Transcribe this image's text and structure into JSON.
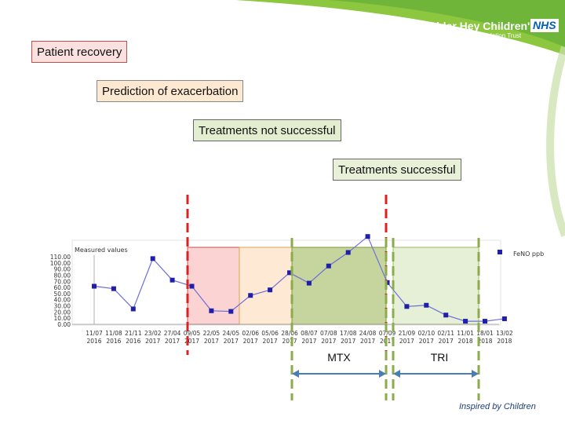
{
  "header": {
    "logo_text": "Alder Hey Children's",
    "logo_nhs": "NHS",
    "logo_sub": "NHS Foundation Trust"
  },
  "boxes": [
    {
      "label": "Patient recovery",
      "fill": "#fbe0e0",
      "border": "#c0504d"
    },
    {
      "label": "Prediction of exacerbation",
      "fill": "#fde9d2",
      "border": "#888888"
    },
    {
      "label": "Treatments not successful",
      "fill": "#e3edcf",
      "border": "#666666"
    },
    {
      "label": "Treatments successful",
      "fill": "#e8f0d8",
      "border": "#666666"
    }
  ],
  "chart_data": {
    "type": "line",
    "title": "Measured values",
    "legend": "FeNO ppb",
    "legend_position": "top-right",
    "ylim": [
      0,
      110
    ],
    "yticks": [
      "0.00",
      "10.00",
      "20.00",
      "30.00",
      "40.00",
      "50.00",
      "60.00",
      "70.00",
      "80.00",
      "90.00",
      "100.00",
      "110.00"
    ],
    "x_labels": [
      [
        "11/07",
        "2016"
      ],
      [
        "11/08",
        "2016"
      ],
      [
        "21/11",
        "2016"
      ],
      [
        "23/02",
        "2017"
      ],
      [
        "27/04",
        "2017"
      ],
      [
        "09/05",
        "2017"
      ],
      [
        "22/05",
        "2017"
      ],
      [
        "24/05",
        "2017"
      ],
      [
        "02/06",
        "2017"
      ],
      [
        "05/06",
        "2017"
      ],
      [
        "28/06",
        "2017"
      ],
      [
        "08/07",
        "2017"
      ],
      [
        "07/08",
        "2017"
      ],
      [
        "17/08",
        "2017"
      ],
      [
        "24/08",
        "2017"
      ],
      [
        "07/09",
        "2017"
      ],
      [
        "21/09",
        "2017"
      ],
      [
        "02/10",
        "2017"
      ],
      [
        "02/11",
        "2017"
      ],
      [
        "11/01",
        "2018"
      ],
      [
        "18/01",
        "2018"
      ],
      [
        "13/02",
        "2018"
      ]
    ],
    "series": [
      {
        "name": "FeNO ppb",
        "color": "#1f1fa8",
        "values": [
          62,
          58,
          25,
          107,
          72,
          62,
          22,
          21,
          47,
          56,
          84,
          67,
          95,
          117,
          143,
          68,
          29,
          31,
          15,
          5,
          5,
          9
        ]
      }
    ],
    "bands": [
      {
        "start_index": 5,
        "end_index": 7,
        "color": "#f9c4c4",
        "border": "#c0504d"
      },
      {
        "start_index": 7,
        "end_index": 10,
        "color": "#fde3c6",
        "border": "#e0a050"
      },
      {
        "start_index": 10,
        "end_index": 14,
        "color": "#b3c57e",
        "border": "#7a9a35"
      },
      {
        "start_index": 15,
        "end_index": 18,
        "color": "#ddebc8",
        "border": "#9ab860"
      }
    ],
    "annotations": [
      {
        "label": "MTX"
      },
      {
        "label": "TRI"
      }
    ]
  },
  "footer": "Inspired by Children"
}
